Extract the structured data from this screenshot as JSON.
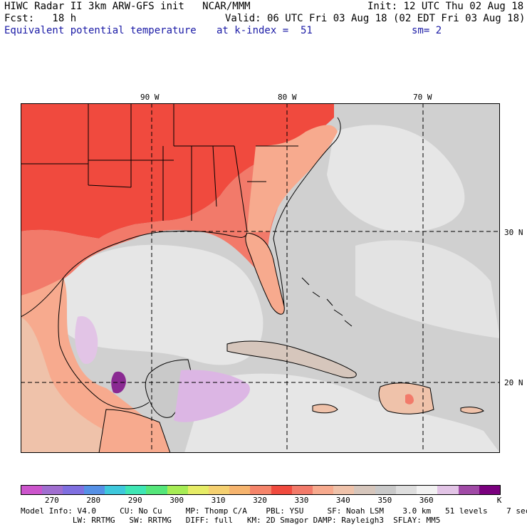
{
  "header": {
    "line1_left": "HIWC Radar II 3km ARW-GFS init   NCAR/MMM",
    "line1_right": "Init: 12 UTC Thu 02 Aug 18",
    "line2_left": "Fcst:   18 h",
    "line2_right": "Valid: 06 UTC Fri 03 Aug 18 (02 EDT Fri 03 Aug 18)",
    "field": "Equivalent potential temperature",
    "level": "at k-index =  51",
    "smooth": "sm= 2"
  },
  "axes": {
    "lon_labels": [
      "90 W",
      "80 W",
      "70 W"
    ],
    "lat_labels": [
      "30 N",
      "20 N"
    ]
  },
  "colorbar": {
    "unit": "K",
    "ticks": [
      "270",
      "280",
      "290",
      "300",
      "310",
      "320",
      "330",
      "340",
      "350",
      "360"
    ],
    "colors": [
      "#cc55cc",
      "#a06ed0",
      "#7f6fe0",
      "#5590e6",
      "#3ec8dc",
      "#3ee6b4",
      "#55e67a",
      "#a6ec55",
      "#e6ec66",
      "#f5d070",
      "#f6b46e",
      "#f5846a",
      "#f04a3e",
      "#f27a6a",
      "#f7aa8e",
      "#efc2aa",
      "#d6c6bc",
      "#c9c9c9",
      "#dedede",
      "#f2f2f2",
      "#e2c4e6",
      "#a04aa6",
      "#7a007e"
    ]
  },
  "map_colors": {
    "hot": "#f04a3e",
    "warm": "#f27a6a",
    "mild": "#f7aa8e",
    "pale": "#efc2aa",
    "tan": "#d6c6bc",
    "gray": "#c9c9c9",
    "light": "#e6e6e6",
    "lilac": "#dcb6e4",
    "purple": "#8a2a92"
  },
  "footer": {
    "line1": "Model Info: V4.0     CU: No Cu     MP: Thomp C/A    PBL: YSU     SF: Noah LSM    3.0 km   51 levels    7 sec",
    "line2": "           LW: RRTMG   SW: RRTMG   DIFF: full   KM: 2D Smagor DAMP: Rayleigh3  SFLAY: MM5"
  }
}
